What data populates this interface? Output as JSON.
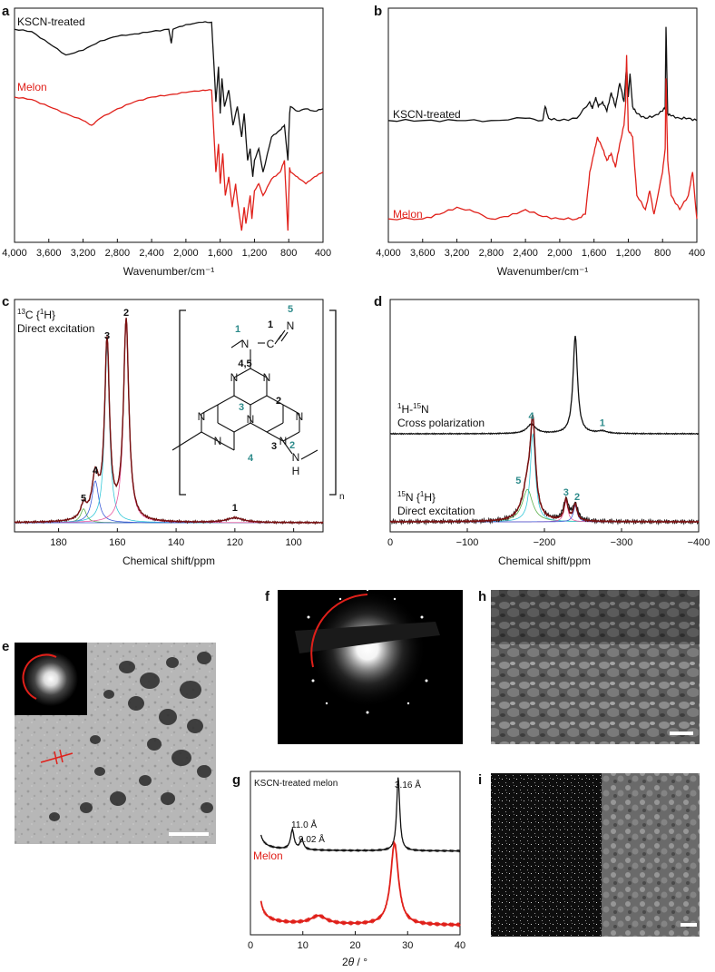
{
  "colors": {
    "black": "#111111",
    "red": "#e0201a",
    "teal": "#2e8b8b",
    "darkred": "#7a1010",
    "cyan": "#33c8d8",
    "green": "#5ab04a",
    "blue": "#3a5bd8",
    "pink": "#e85aa0"
  },
  "panels": {
    "a": {
      "letter": "a",
      "xlabel": "Wavenumber/cm⁻¹",
      "labels": [
        "KSCN-treated",
        "Melon"
      ]
    },
    "b": {
      "letter": "b",
      "xlabel": "Wavenumber/cm⁻¹",
      "labels": [
        "KSCN-treated",
        "Melon"
      ]
    },
    "c": {
      "letter": "c",
      "xlabel": "Chemical shift/ppm",
      "title_line1": "13C {1H}",
      "title_line2": "Direct excitation"
    },
    "d": {
      "letter": "d",
      "xlabel": "Chemical shift/ppm",
      "trace1_line1": "1H-15N",
      "trace1_line2": "Cross polarization",
      "trace2_line1": "15N {1H}",
      "trace2_line2": "Direct excitation"
    },
    "e": {
      "letter": "e"
    },
    "f": {
      "letter": "f"
    },
    "g": {
      "letter": "g",
      "xlabel": "2θ / °",
      "labels": [
        "KSCN-treated melon",
        "Melon"
      ],
      "annotations": [
        "11.0 Å",
        "9.02 Å",
        "3.16 Å"
      ]
    },
    "h": {
      "letter": "h"
    },
    "i": {
      "letter": "i"
    }
  },
  "structure": {
    "subscript": "n",
    "dark_numbers": [
      "1",
      "5",
      "4,5",
      "2",
      "3"
    ],
    "teal_numbers": [
      "1",
      "5",
      "3",
      "2",
      "4"
    ],
    "atoms": [
      "N",
      "C",
      "N",
      "N",
      "N",
      "N",
      "N",
      "N",
      "N",
      "N",
      "H"
    ]
  },
  "chart_data": [
    {
      "panel": "a",
      "type": "line",
      "title": "",
      "xlabel": "Wavenumber/cm⁻¹",
      "ylabel": "",
      "xlim": [
        4000,
        400
      ],
      "x_ticks": [
        "4,000",
        "3,600",
        "3,200",
        "2,800",
        "2,400",
        "2,000",
        "1,600",
        "1,200",
        "800",
        "400"
      ],
      "x_tick_values": [
        4000,
        3600,
        3200,
        2800,
        2400,
        2000,
        1600,
        1200,
        800,
        400
      ],
      "series": [
        {
          "name": "KSCN-treated",
          "color": "#111111",
          "x": [
            4000,
            3800,
            3600,
            3400,
            3200,
            3000,
            2800,
            2600,
            2400,
            2200,
            2170,
            2150,
            2000,
            1800,
            1700,
            1650,
            1620,
            1600,
            1580,
            1550,
            1500,
            1450,
            1400,
            1350,
            1320,
            1280,
            1250,
            1220,
            1200,
            1150,
            1100,
            1000,
            900,
            850,
            810,
            790,
            780,
            700,
            600,
            500,
            400
          ],
          "y": [
            0.91,
            0.9,
            0.85,
            0.8,
            0.82,
            0.86,
            0.88,
            0.89,
            0.9,
            0.91,
            0.85,
            0.91,
            0.93,
            0.94,
            0.94,
            0.6,
            0.75,
            0.55,
            0.7,
            0.58,
            0.65,
            0.5,
            0.58,
            0.45,
            0.55,
            0.35,
            0.4,
            0.28,
            0.35,
            0.4,
            0.3,
            0.45,
            0.48,
            0.5,
            0.35,
            0.55,
            0.58,
            0.56,
            0.57,
            0.56,
            0.57
          ]
        },
        {
          "name": "Melon",
          "color": "#e0201a",
          "x": [
            4000,
            3800,
            3600,
            3400,
            3200,
            3100,
            3000,
            2800,
            2600,
            2400,
            2200,
            2000,
            1800,
            1700,
            1650,
            1620,
            1600,
            1570,
            1540,
            1500,
            1460,
            1420,
            1400,
            1350,
            1320,
            1300,
            1250,
            1230,
            1200,
            1150,
            1100,
            1000,
            900,
            850,
            810,
            790,
            780,
            700,
            600,
            500,
            400
          ],
          "y": [
            0.62,
            0.61,
            0.58,
            0.55,
            0.52,
            0.5,
            0.53,
            0.57,
            0.6,
            0.62,
            0.63,
            0.64,
            0.65,
            0.65,
            0.3,
            0.42,
            0.25,
            0.38,
            0.2,
            0.28,
            0.15,
            0.25,
            0.18,
            0.05,
            0.15,
            0.08,
            0.2,
            0.1,
            0.22,
            0.25,
            0.2,
            0.27,
            0.3,
            0.35,
            0.05,
            0.32,
            0.3,
            0.28,
            0.25,
            0.28,
            0.3
          ]
        }
      ]
    },
    {
      "panel": "b",
      "type": "line",
      "title": "",
      "xlabel": "Wavenumber/cm⁻¹",
      "ylabel": "",
      "xlim": [
        4000,
        400
      ],
      "x_ticks": [
        "4,000",
        "3,600",
        "3,200",
        "2,800",
        "2,400",
        "2,000",
        "1,600",
        "1,200",
        "800",
        "400"
      ],
      "x_tick_values": [
        4000,
        3600,
        3200,
        2800,
        2400,
        2000,
        1600,
        1200,
        800,
        400
      ],
      "series": [
        {
          "name": "KSCN-treated",
          "color": "#111111",
          "x": [
            4000,
            3600,
            3200,
            2800,
            2400,
            2200,
            2170,
            2130,
            2000,
            1800,
            1650,
            1620,
            1580,
            1550,
            1500,
            1450,
            1400,
            1350,
            1300,
            1250,
            1220,
            1200,
            1180,
            1150,
            1100,
            1000,
            900,
            800,
            770,
            760,
            740,
            700,
            600,
            500,
            400
          ],
          "y": [
            0.52,
            0.52,
            0.52,
            0.52,
            0.53,
            0.52,
            0.58,
            0.53,
            0.52,
            0.53,
            0.6,
            0.57,
            0.62,
            0.58,
            0.6,
            0.56,
            0.64,
            0.58,
            0.68,
            0.6,
            0.75,
            0.62,
            0.72,
            0.58,
            0.55,
            0.53,
            0.54,
            0.56,
            0.58,
            0.92,
            0.55,
            0.54,
            0.53,
            0.53,
            0.52
          ]
        },
        {
          "name": "Melon",
          "color": "#e0201a",
          "x": [
            4000,
            3600,
            3400,
            3200,
            3000,
            2800,
            2600,
            2400,
            2200,
            2000,
            1800,
            1700,
            1650,
            1600,
            1560,
            1500,
            1450,
            1400,
            1350,
            1300,
            1250,
            1230,
            1220,
            1200,
            1150,
            1100,
            1000,
            950,
            900,
            800,
            770,
            760,
            740,
            700,
            600,
            500,
            450,
            400
          ],
          "y": [
            0.1,
            0.1,
            0.12,
            0.15,
            0.13,
            0.1,
            0.11,
            0.14,
            0.11,
            0.1,
            0.1,
            0.12,
            0.3,
            0.38,
            0.45,
            0.4,
            0.35,
            0.38,
            0.32,
            0.42,
            0.5,
            0.6,
            0.8,
            0.48,
            0.45,
            0.2,
            0.14,
            0.22,
            0.12,
            0.3,
            0.4,
            0.7,
            0.35,
            0.2,
            0.14,
            0.2,
            0.3,
            0.1
          ]
        }
      ]
    },
    {
      "panel": "c",
      "type": "line",
      "title": "",
      "xlabel": "Chemical shift/ppm",
      "ylabel": "",
      "xlim": [
        195,
        90
      ],
      "x_ticks": [
        "180",
        "160",
        "140",
        "120",
        "100"
      ],
      "x_tick_values": [
        180,
        160,
        140,
        120,
        100
      ],
      "peaks": [
        {
          "label": "5",
          "ppm": 171.5,
          "height": 0.06
        },
        {
          "label": "4",
          "ppm": 167.5,
          "height": 0.18
        },
        {
          "label": "3",
          "ppm": 163.5,
          "height": 0.76
        },
        {
          "label": "2",
          "ppm": 157.0,
          "height": 0.86
        },
        {
          "label": "1",
          "ppm": 120.0,
          "height": 0.02
        }
      ]
    },
    {
      "panel": "d",
      "type": "line",
      "title": "",
      "xlabel": "Chemical shift/ppm",
      "ylabel": "",
      "xlim": [
        0,
        -400
      ],
      "x_ticks": [
        "0",
        "−100",
        "−200",
        "−300",
        "−400"
      ],
      "x_tick_values": [
        0,
        -100,
        -200,
        -300,
        -400
      ],
      "series_peaks": [
        {
          "name": "1H-15N Cross polarization",
          "peaks": [
            {
              "label": "4",
              "ppm": -183,
              "height": 0.04
            },
            {
              "label": "",
              "ppm": -240,
              "height": 0.42
            },
            {
              "label": "1",
              "ppm": -275,
              "height": 0.01
            }
          ]
        },
        {
          "name": "15N {1H} Direct excitation",
          "peaks": [
            {
              "label": "5",
              "ppm": -178,
              "height": 0.14
            },
            {
              "label": "4",
              "ppm": -185,
              "height": 0.38
            },
            {
              "label": "3",
              "ppm": -228,
              "height": 0.09
            },
            {
              "label": "2",
              "ppm": -240,
              "height": 0.07
            }
          ]
        }
      ]
    },
    {
      "panel": "g",
      "type": "line",
      "title": "",
      "xlabel": "2θ / °",
      "ylabel": "",
      "xlim": [
        0,
        40
      ],
      "x_ticks": [
        "0",
        "10",
        "20",
        "30",
        "40"
      ],
      "x_tick_values": [
        0,
        10,
        20,
        30,
        40
      ],
      "series": [
        {
          "name": "KSCN-treated melon",
          "color": "#111111",
          "peaks": [
            {
              "x": 8.0,
              "height": 0.12,
              "label": "11.0 Å"
            },
            {
              "x": 9.8,
              "height": 0.06,
              "label": "9.02 Å"
            },
            {
              "x": 28.2,
              "height": 0.45,
              "label": "3.16 Å"
            }
          ]
        },
        {
          "name": "Melon",
          "color": "#e0201a",
          "peaks": [
            {
              "x": 13.0,
              "height": 0.05
            },
            {
              "x": 27.5,
              "height": 0.5
            }
          ]
        }
      ]
    }
  ]
}
